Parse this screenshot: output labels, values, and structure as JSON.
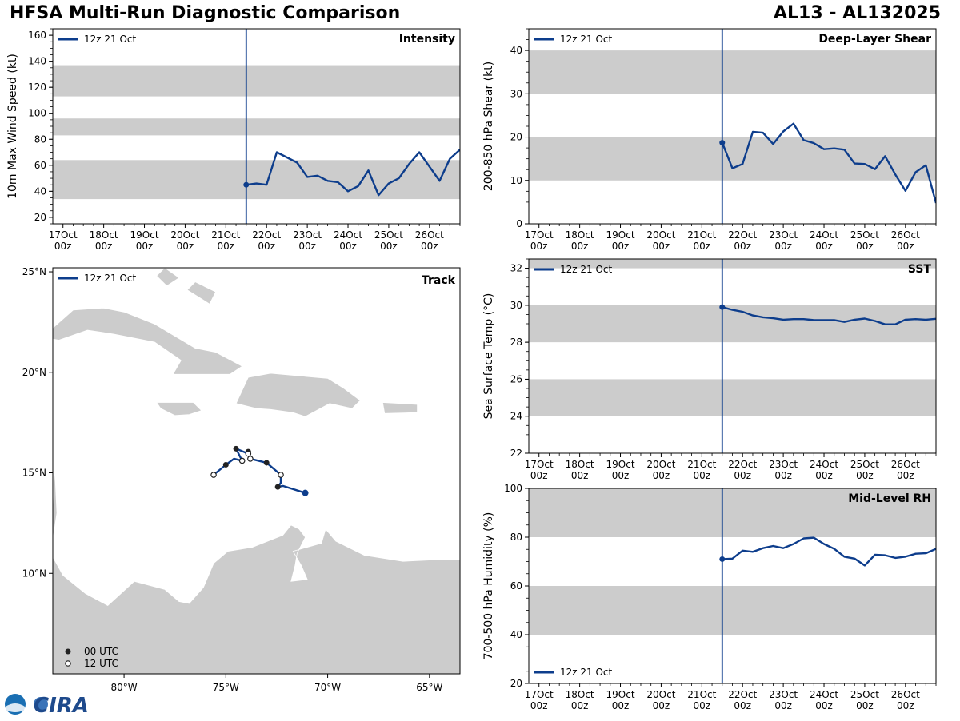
{
  "figure": {
    "title_left": "HFSA Multi-Run Diagnostic Comparison",
    "title_right": "AL13 - AL132025",
    "logo_text": "CIRA"
  },
  "colors": {
    "series": "#0d3d8c",
    "band": "#cccccc",
    "land": "#cccccc",
    "marker_00": "#222222",
    "marker_12_fill": "#ffffff"
  },
  "time_ticks": [
    "17Oct\n00z",
    "18Oct\n00z",
    "19Oct\n00z",
    "20Oct\n00z",
    "21Oct\n00z",
    "22Oct\n00z",
    "23Oct\n00z",
    "24Oct\n00z",
    "25Oct\n00z",
    "26Oct\n00z"
  ],
  "chart_data": [
    {
      "id": "intensity",
      "type": "line",
      "panel_label": "Intensity",
      "ylabel": "10m Max Wind Speed (kt)",
      "ylim": [
        15,
        165
      ],
      "yticks": [
        20,
        40,
        60,
        80,
        100,
        120,
        140,
        160
      ],
      "xlim": [
        -0.25,
        9.75
      ],
      "init_time": 4.5,
      "bands": [
        [
          34,
          64
        ],
        [
          83,
          96
        ],
        [
          113,
          137
        ]
      ],
      "legend": "12z 21 Oct",
      "legend_position": "top-left",
      "series": [
        {
          "name": "12z 21 Oct",
          "x": [
            4.5,
            4.75,
            5.0,
            5.25,
            5.5,
            5.75,
            6.0,
            6.25,
            6.5,
            6.75,
            7.0,
            7.25,
            7.5,
            7.75,
            8.0,
            8.25,
            8.5,
            8.75,
            9.0,
            9.25,
            9.5,
            9.75
          ],
          "y": [
            45,
            46,
            45,
            70,
            66,
            62,
            51,
            52,
            48,
            47,
            40,
            44,
            56,
            37,
            46,
            50,
            61,
            70,
            59,
            48,
            65,
            72
          ]
        }
      ]
    },
    {
      "id": "shear",
      "type": "line",
      "panel_label": "Deep-Layer Shear",
      "ylabel": "200-850 hPa Shear (kt)",
      "ylim": [
        0,
        45
      ],
      "yticks": [
        0,
        10,
        20,
        30,
        40
      ],
      "xlim": [
        -0.25,
        9.75
      ],
      "init_time": 4.5,
      "bands": [
        [
          10,
          20
        ],
        [
          30,
          40
        ]
      ],
      "legend": "12z 21 Oct",
      "legend_position": "top-left",
      "series": [
        {
          "name": "12z 21 Oct",
          "x": [
            4.5,
            4.75,
            5.0,
            5.25,
            5.5,
            5.75,
            6.0,
            6.25,
            6.5,
            6.75,
            7.0,
            7.25,
            7.5,
            7.75,
            8.0,
            8.25,
            8.5,
            8.75,
            9.0,
            9.25,
            9.5,
            9.75
          ],
          "y": [
            18.7,
            12.8,
            13.8,
            21.2,
            21.0,
            18.4,
            21.3,
            23.1,
            19.3,
            18.6,
            17.2,
            17.4,
            17.1,
            13.9,
            13.8,
            12.6,
            15.6,
            11.4,
            7.6,
            11.9,
            13.5,
            4.8
          ]
        }
      ]
    },
    {
      "id": "sst",
      "type": "line",
      "panel_label": "SST",
      "ylabel": "Sea Surface Temp (°C)",
      "ylim": [
        22,
        32.5
      ],
      "yticks": [
        22,
        24,
        26,
        28,
        30,
        32
      ],
      "xlim": [
        -0.25,
        9.75
      ],
      "init_time": 4.5,
      "bands": [
        [
          24,
          26
        ],
        [
          28,
          30
        ],
        [
          32,
          34
        ]
      ],
      "legend": "12z 21 Oct",
      "legend_position": "top-left",
      "series": [
        {
          "name": "12z 21 Oct",
          "x": [
            4.5,
            4.75,
            5.0,
            5.25,
            5.5,
            5.75,
            6.0,
            6.25,
            6.5,
            6.75,
            7.0,
            7.25,
            7.5,
            7.75,
            8.0,
            8.25,
            8.5,
            8.75,
            9.0,
            9.25,
            9.5,
            9.75
          ],
          "y": [
            29.9,
            29.75,
            29.65,
            29.45,
            29.35,
            29.3,
            29.22,
            29.25,
            29.25,
            29.2,
            29.2,
            29.2,
            29.1,
            29.22,
            29.28,
            29.15,
            28.97,
            28.97,
            29.22,
            29.25,
            29.22,
            29.27
          ]
        }
      ]
    },
    {
      "id": "rh",
      "type": "line",
      "panel_label": "Mid-Level RH",
      "ylabel": "700-500 hPa Humidity (%)",
      "ylim": [
        20,
        100
      ],
      "yticks": [
        20,
        40,
        60,
        80,
        100
      ],
      "xlim": [
        -0.25,
        9.75
      ],
      "init_time": 4.5,
      "bands": [
        [
          40,
          60
        ],
        [
          80,
          100
        ]
      ],
      "legend": "12z 21 Oct",
      "legend_position": "bottom-left",
      "series": [
        {
          "name": "12z 21 Oct",
          "x": [
            4.5,
            4.75,
            5.0,
            5.25,
            5.5,
            5.75,
            6.0,
            6.25,
            6.5,
            6.75,
            7.0,
            7.25,
            7.5,
            7.75,
            8.0,
            8.25,
            8.5,
            8.75,
            9.0,
            9.25,
            9.5,
            9.75
          ],
          "y": [
            71.0,
            71.2,
            74.5,
            74.0,
            75.5,
            76.4,
            75.5,
            77.2,
            79.5,
            79.8,
            77.2,
            75.2,
            72.0,
            71.2,
            68.4,
            72.8,
            72.6,
            71.5,
            72.0,
            73.2,
            73.4,
            75.2
          ]
        }
      ]
    }
  ],
  "track": {
    "panel_label": "Track",
    "legend": "12z 21 Oct",
    "legend_00": "00 UTC",
    "legend_12": "12 UTC",
    "lon_range": [
      -83.5,
      -63.5
    ],
    "lat_range": [
      5.0,
      25.2
    ],
    "lon_ticks": [
      -80,
      -75,
      -70,
      -65
    ],
    "lon_tick_labels": [
      "80°W",
      "75°W",
      "70°W",
      "65°W"
    ],
    "lat_ticks": [
      10,
      15,
      20,
      25
    ],
    "lat_tick_labels": [
      "10°N",
      "15°N",
      "20°N",
      "25°N"
    ],
    "points": [
      {
        "lon": -71.1,
        "lat": 14.0,
        "kind": "start"
      },
      {
        "lon": -72.2,
        "lat": 14.35,
        "kind": "none"
      },
      {
        "lon": -72.45,
        "lat": 14.3,
        "kind": "00"
      },
      {
        "lon": -72.3,
        "lat": 14.5,
        "kind": "none"
      },
      {
        "lon": -72.3,
        "lat": 14.9,
        "kind": "12"
      },
      {
        "lon": -73.0,
        "lat": 15.5,
        "kind": "00"
      },
      {
        "lon": -73.8,
        "lat": 15.7,
        "kind": "12"
      },
      {
        "lon": -73.9,
        "lat": 16.05,
        "kind": "00"
      },
      {
        "lon": -73.9,
        "lat": 15.95,
        "kind": "12"
      },
      {
        "lon": -74.5,
        "lat": 16.2,
        "kind": "00"
      },
      {
        "lon": -74.3,
        "lat": 15.8,
        "kind": "none"
      },
      {
        "lon": -74.2,
        "lat": 15.6,
        "kind": "12"
      },
      {
        "lon": -74.6,
        "lat": 15.7,
        "kind": "none"
      },
      {
        "lon": -75.0,
        "lat": 15.4,
        "kind": "00"
      },
      {
        "lon": -75.6,
        "lat": 14.9,
        "kind": "12"
      }
    ]
  }
}
